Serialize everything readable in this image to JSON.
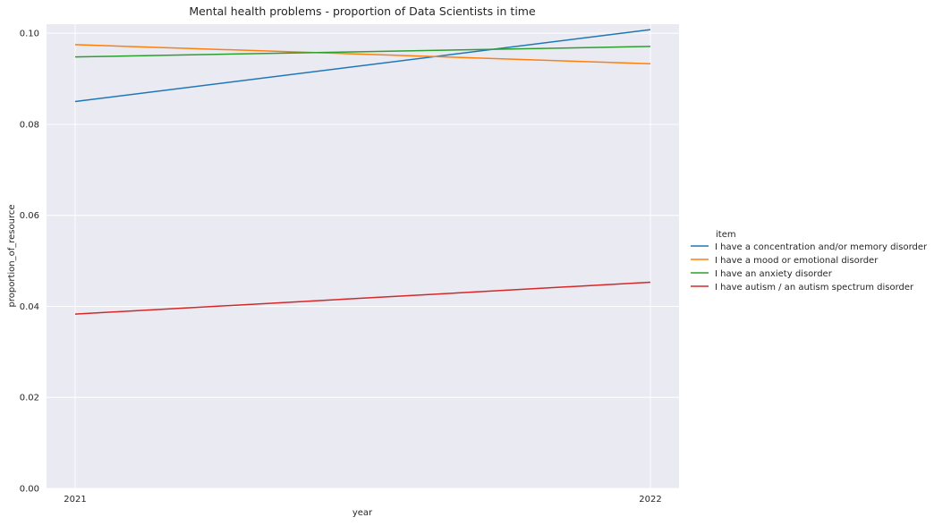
{
  "chart_data": {
    "type": "line",
    "title": "Mental health problems - proportion of Data Scientists in time",
    "xlabel": "year",
    "ylabel": "proportion_of_resource",
    "x": [
      2021,
      2022
    ],
    "x_tick_labels": [
      "2021",
      "2022"
    ],
    "ylim": [
      0.0,
      0.102
    ],
    "y_ticks": [
      0.0,
      0.02,
      0.04,
      0.06,
      0.08,
      0.1
    ],
    "y_tick_labels": [
      "0.00",
      "0.02",
      "0.04",
      "0.06",
      "0.08",
      "0.10"
    ],
    "grid": true,
    "background": "#eaeaf2",
    "legend": {
      "title": "item",
      "placement": "right"
    },
    "series": [
      {
        "name": "I have a concentration and/or memory disorder",
        "color": "#1f77b4",
        "values": [
          0.085,
          0.1008
        ]
      },
      {
        "name": "I have a mood or emotional disorder",
        "color": "#ff7f0e",
        "values": [
          0.0975,
          0.0933
        ]
      },
      {
        "name": "I have an anxiety disorder",
        "color": "#2ca02c",
        "values": [
          0.0948,
          0.0971
        ]
      },
      {
        "name": "I have autism / an autism spectrum disorder",
        "color": "#d62728",
        "values": [
          0.0383,
          0.0453
        ]
      }
    ]
  }
}
